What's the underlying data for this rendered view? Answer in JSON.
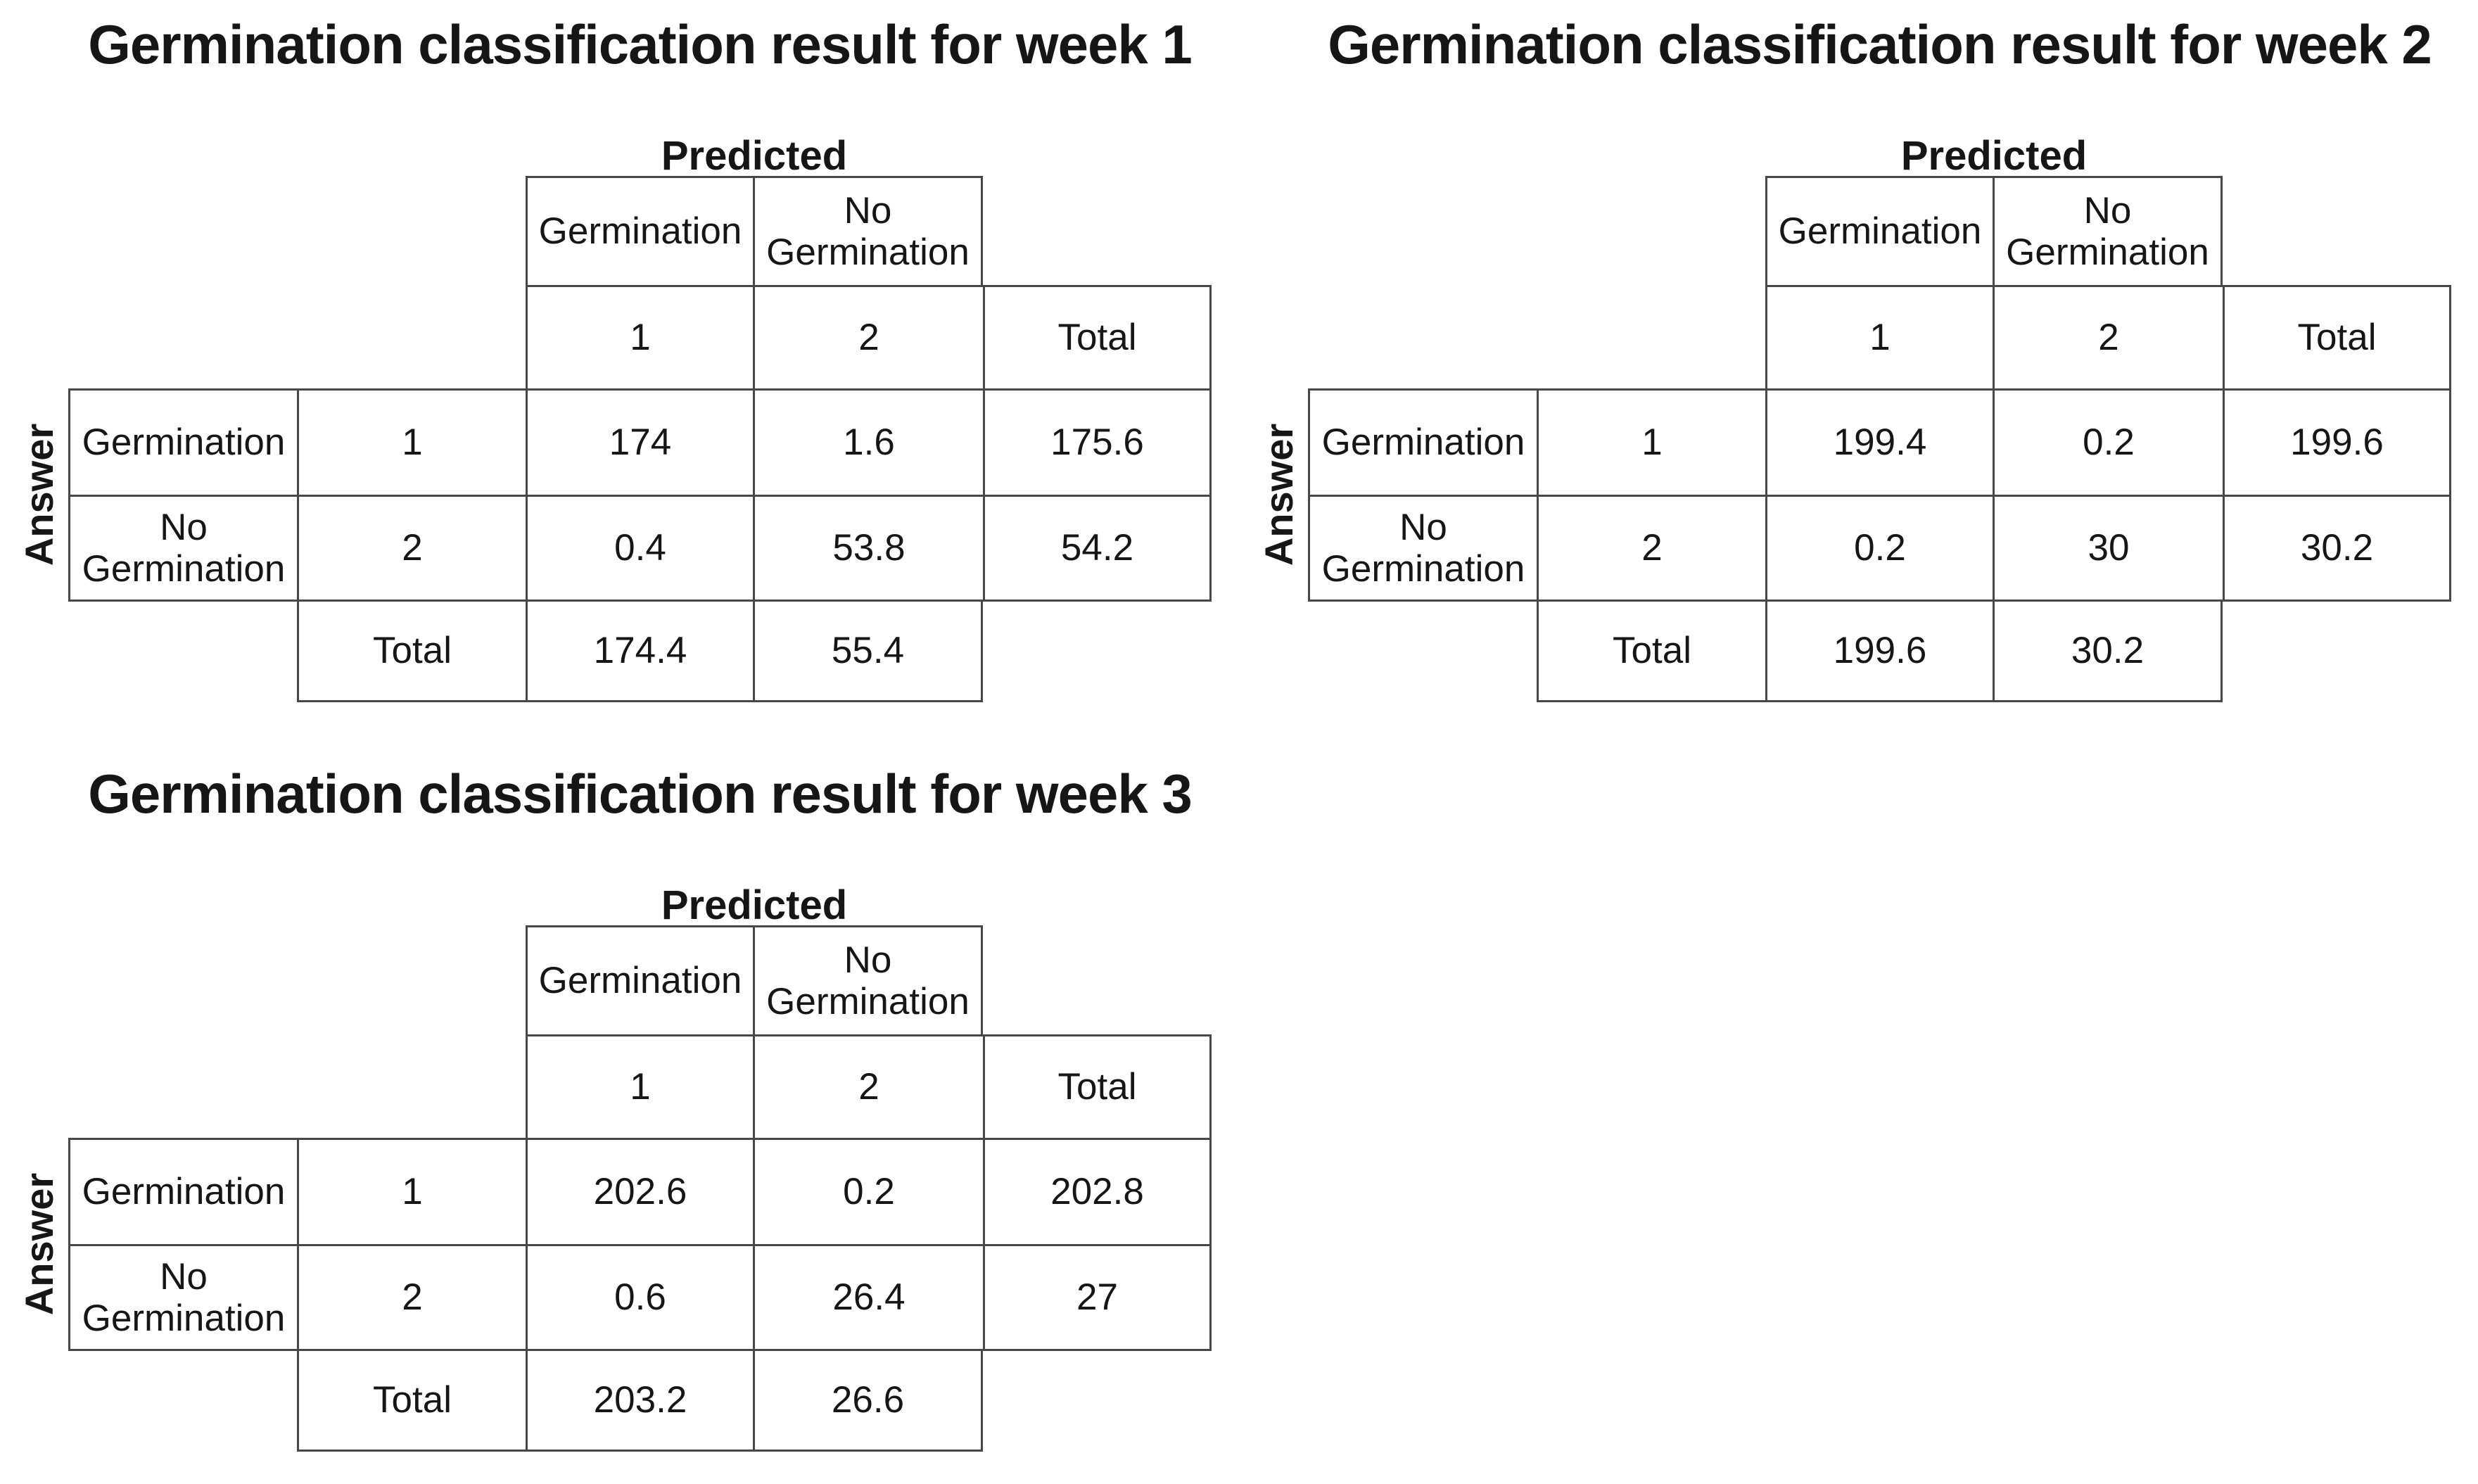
{
  "page": {
    "background_color": "#ffffff",
    "text_color": "#161616",
    "border_color": "#474747"
  },
  "tables": [
    {
      "title": "Germination classification result for week 1",
      "predicted_label": "Predicted",
      "answer_label": "Answer",
      "col_headers": [
        "Germination",
        "No Germination"
      ],
      "col_codes": [
        "1",
        "2"
      ],
      "total_label": "Total",
      "rows": [
        {
          "label": "Germination",
          "code": "1",
          "pred_germination": "174",
          "pred_no_germination": "1.6",
          "total": "175.6"
        },
        {
          "label": "No Germination",
          "code": "2",
          "pred_germination": "0.4",
          "pred_no_germination": "53.8",
          "total": "54.2"
        }
      ],
      "totals": {
        "label": "Total",
        "pred_germination": "174.4",
        "pred_no_germination": "55.4"
      }
    },
    {
      "title": "Germination classification result for week 2",
      "predicted_label": "Predicted",
      "answer_label": "Answer",
      "col_headers": [
        "Germination",
        "No Germination"
      ],
      "col_codes": [
        "1",
        "2"
      ],
      "total_label": "Total",
      "rows": [
        {
          "label": "Germination",
          "code": "1",
          "pred_germination": "199.4",
          "pred_no_germination": "0.2",
          "total": "199.6"
        },
        {
          "label": "No Germination",
          "code": "2",
          "pred_germination": "0.2",
          "pred_no_germination": "30",
          "total": "30.2"
        }
      ],
      "totals": {
        "label": "Total",
        "pred_germination": "199.6",
        "pred_no_germination": "30.2"
      }
    },
    {
      "title": "Germination classification result for week 3",
      "predicted_label": "Predicted",
      "answer_label": "Answer",
      "col_headers": [
        "Germination",
        "No Germination"
      ],
      "col_codes": [
        "1",
        "2"
      ],
      "total_label": "Total",
      "rows": [
        {
          "label": "Germination",
          "code": "1",
          "pred_germination": "202.6",
          "pred_no_germination": "0.2",
          "total": "202.8"
        },
        {
          "label": "No Germination",
          "code": "2",
          "pred_germination": "0.6",
          "pred_no_germination": "26.4",
          "total": "27"
        }
      ],
      "totals": {
        "label": "Total",
        "pred_germination": "203.2",
        "pred_no_germination": "26.6"
      }
    }
  ],
  "chart_data": [
    {
      "type": "table",
      "title": "Germination classification result for week 1",
      "row_axis_label": "Answer",
      "col_axis_label": "Predicted",
      "classes": [
        "Germination",
        "No Germination"
      ],
      "class_codes": [
        1,
        2
      ],
      "matrix": [
        [
          174,
          1.6
        ],
        [
          0.4,
          53.8
        ]
      ],
      "row_totals": [
        175.6,
        54.2
      ],
      "col_totals": [
        174.4,
        55.4
      ]
    },
    {
      "type": "table",
      "title": "Germination classification result for week 2",
      "row_axis_label": "Answer",
      "col_axis_label": "Predicted",
      "classes": [
        "Germination",
        "No Germination"
      ],
      "class_codes": [
        1,
        2
      ],
      "matrix": [
        [
          199.4,
          0.2
        ],
        [
          0.2,
          30
        ]
      ],
      "row_totals": [
        199.6,
        30.2
      ],
      "col_totals": [
        199.6,
        30.2
      ]
    },
    {
      "type": "table",
      "title": "Germination classification result for week 3",
      "row_axis_label": "Answer",
      "col_axis_label": "Predicted",
      "classes": [
        "Germination",
        "No Germination"
      ],
      "class_codes": [
        1,
        2
      ],
      "matrix": [
        [
          202.6,
          0.2
        ],
        [
          0.6,
          26.4
        ]
      ],
      "row_totals": [
        202.8,
        27
      ],
      "col_totals": [
        203.2,
        26.6
      ]
    }
  ]
}
